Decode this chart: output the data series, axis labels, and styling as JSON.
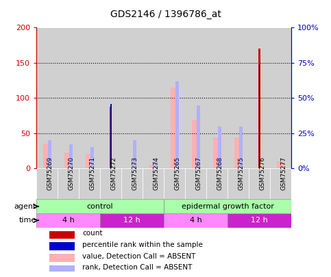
{
  "title": "GDS2146 / 1396786_at",
  "samples": [
    "GSM75269",
    "GSM75270",
    "GSM75271",
    "GSM75272",
    "GSM75273",
    "GSM75274",
    "GSM75265",
    "GSM75267",
    "GSM75268",
    "GSM75275",
    "GSM75276",
    "GSM75277"
  ],
  "count_values": [
    0,
    0,
    0,
    88,
    0,
    0,
    0,
    0,
    0,
    0,
    170,
    0
  ],
  "percentile_values": [
    0,
    0,
    0,
    46,
    0,
    0,
    0,
    0,
    0,
    0,
    74,
    0
  ],
  "absent_value_values": [
    35,
    23,
    21,
    0,
    0,
    5,
    115,
    69,
    44,
    44,
    0,
    10
  ],
  "absent_rank_values": [
    20,
    17,
    15,
    0,
    20,
    5,
    62,
    45,
    30,
    30,
    0,
    0
  ],
  "ylim_left": [
    0,
    200
  ],
  "ylim_right": [
    0,
    100
  ],
  "yticks_left": [
    0,
    50,
    100,
    150,
    200
  ],
  "yticks_right": [
    0,
    25,
    50,
    75,
    100
  ],
  "yticklabels_left": [
    "0",
    "50",
    "100",
    "150",
    "200"
  ],
  "yticklabels_right": [
    "0%",
    "25%",
    "50%",
    "75%",
    "100%"
  ],
  "color_count": "#cc0000",
  "color_percentile": "#0000cc",
  "color_absent_value": "#ffb0b0",
  "color_absent_rank": "#b0b0ff",
  "agent_groups": [
    {
      "text": "control",
      "start": 0,
      "end": 6,
      "color": "#aaffaa"
    },
    {
      "text": "epidermal growth factor",
      "start": 6,
      "end": 12,
      "color": "#aaffaa"
    }
  ],
  "time_groups": [
    {
      "text": "4 h",
      "start": 0,
      "end": 3,
      "color": "#ff88ff"
    },
    {
      "text": "12 h",
      "start": 3,
      "end": 6,
      "color": "#cc22cc"
    },
    {
      "text": "4 h",
      "start": 6,
      "end": 9,
      "color": "#ff88ff"
    },
    {
      "text": "12 h",
      "start": 9,
      "end": 12,
      "color": "#cc22cc"
    }
  ],
  "legend_items": [
    {
      "label": "count",
      "color": "#cc0000"
    },
    {
      "label": "percentile rank within the sample",
      "color": "#0000cc"
    },
    {
      "label": "value, Detection Call = ABSENT",
      "color": "#ffb0b0"
    },
    {
      "label": "rank, Detection Call = ABSENT",
      "color": "#b0b0ff"
    }
  ],
  "bg_color": "#ffffff",
  "plot_bg_color": "#ffffff",
  "column_bg_color": "#d0d0d0",
  "axis_left_color": "#cc0000",
  "axis_right_color": "#0000cc",
  "grid_linestyle": "dotted",
  "grid_color": "#000000"
}
